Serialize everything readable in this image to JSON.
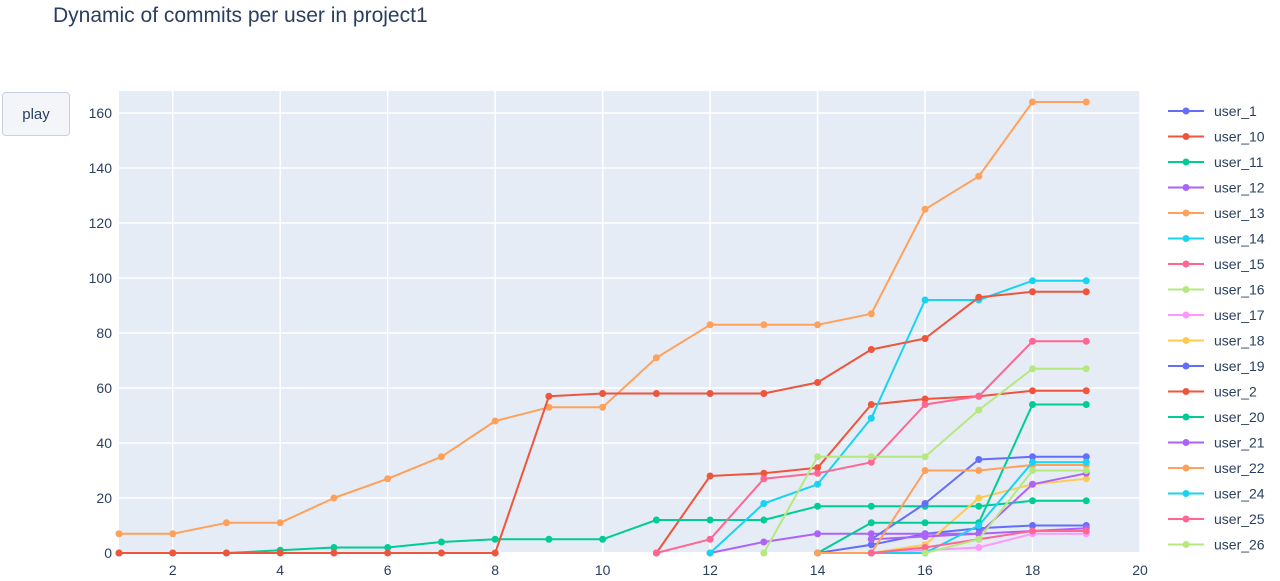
{
  "controls": {
    "play_label": "play"
  },
  "chart_data": {
    "type": "line",
    "title": "Dynamic of commits per user in project1",
    "xlabel": "",
    "ylabel": "",
    "xlim": [
      1,
      20
    ],
    "ylim": [
      0,
      168
    ],
    "x_ticks": [
      2,
      4,
      6,
      8,
      10,
      12,
      14,
      16,
      18,
      20
    ],
    "y_ticks": [
      0,
      20,
      40,
      60,
      80,
      100,
      120,
      140,
      160
    ],
    "grid": true,
    "legend_position": "right",
    "plot_background": "#e5ecf6",
    "series": [
      {
        "name": "user_1",
        "color": "#636efa",
        "x": [
          14,
          15,
          16,
          17,
          18,
          19
        ],
        "y": [
          0,
          3,
          7,
          9,
          10,
          10
        ]
      },
      {
        "name": "user_10",
        "color": "#ef553b",
        "x": [
          11,
          12,
          13,
          14,
          15,
          16,
          17,
          18,
          19
        ],
        "y": [
          0,
          28,
          29,
          31,
          54,
          56,
          57,
          59,
          59
        ]
      },
      {
        "name": "user_11",
        "color": "#00cc96",
        "x": [
          1,
          2,
          3,
          4,
          5,
          6,
          7,
          8,
          9,
          10,
          11,
          12,
          13,
          14,
          15,
          16,
          17,
          18,
          19
        ],
        "y": [
          0,
          0,
          0,
          1,
          2,
          2,
          4,
          5,
          5,
          5,
          12,
          12,
          12,
          17,
          17,
          17,
          17,
          19,
          19
        ]
      },
      {
        "name": "user_12",
        "color": "#ab63fa",
        "x": [
          12,
          13,
          14,
          15,
          16,
          17,
          18,
          19
        ],
        "y": [
          0,
          4,
          7,
          7,
          7,
          7,
          8,
          9
        ]
      },
      {
        "name": "user_13",
        "color": "#ffa15a",
        "x": [
          1,
          2,
          3,
          4,
          5,
          6,
          7,
          8,
          9,
          10,
          11,
          12,
          13,
          14,
          15,
          16,
          17,
          18,
          19
        ],
        "y": [
          7,
          7,
          11,
          11,
          20,
          27,
          35,
          48,
          53,
          53,
          71,
          83,
          83,
          83,
          87,
          125,
          137,
          164,
          164
        ]
      },
      {
        "name": "user_14",
        "color": "#19d3f3",
        "x": [
          12,
          13,
          14,
          15,
          16,
          17,
          18,
          19
        ],
        "y": [
          0,
          18,
          25,
          49,
          92,
          92,
          99,
          99
        ]
      },
      {
        "name": "user_15",
        "color": "#ff6692",
        "x": [
          11,
          12,
          13,
          14,
          15,
          16,
          17,
          18,
          19
        ],
        "y": [
          0,
          5,
          27,
          29,
          33,
          54,
          57,
          77,
          77
        ]
      },
      {
        "name": "user_16",
        "color": "#b6e880",
        "x": [
          13,
          14,
          15,
          16,
          17,
          18,
          19
        ],
        "y": [
          0,
          35,
          35,
          35,
          52,
          67,
          67
        ]
      },
      {
        "name": "user_17",
        "color": "#ff97ff",
        "x": [
          15,
          16,
          17,
          18,
          19
        ],
        "y": [
          0,
          1,
          2,
          7,
          7
        ]
      },
      {
        "name": "user_18",
        "color": "#fecb52",
        "x": [
          15,
          16,
          17,
          18,
          19
        ],
        "y": [
          0,
          3,
          20,
          25,
          27
        ]
      },
      {
        "name": "user_19",
        "color": "#636efa",
        "x": [
          15,
          16,
          17,
          18,
          19
        ],
        "y": [
          5,
          18,
          34,
          35,
          35
        ]
      },
      {
        "name": "user_2",
        "color": "#ef553b",
        "x": [
          1,
          2,
          3,
          4,
          5,
          6,
          7,
          8,
          9,
          10,
          11,
          12,
          13,
          14,
          15,
          16,
          17,
          18,
          19
        ],
        "y": [
          0,
          0,
          0,
          0,
          0,
          0,
          0,
          0,
          57,
          58,
          58,
          58,
          58,
          62,
          74,
          78,
          93,
          95,
          95
        ]
      },
      {
        "name": "user_20",
        "color": "#00cc96",
        "x": [
          14,
          15,
          16,
          17,
          18,
          19
        ],
        "y": [
          0,
          11,
          11,
          11,
          54,
          54
        ]
      },
      {
        "name": "user_21",
        "color": "#ab63fa",
        "x": [
          15,
          16,
          17,
          18,
          19
        ],
        "y": [
          5,
          6,
          7,
          25,
          29
        ]
      },
      {
        "name": "user_22",
        "color": "#ffa15a",
        "x": [
          14,
          15,
          16,
          17,
          18,
          19
        ],
        "y": [
          0,
          0,
          30,
          30,
          32,
          32
        ]
      },
      {
        "name": "user_24",
        "color": "#19d3f3",
        "x": [
          15,
          16,
          17,
          18,
          19
        ],
        "y": [
          0,
          0,
          10,
          33,
          33
        ]
      },
      {
        "name": "user_25",
        "color": "#ff6692",
        "x": [
          15,
          16,
          17,
          18,
          19
        ],
        "y": [
          0,
          2,
          5,
          8,
          8
        ]
      },
      {
        "name": "user_26",
        "color": "#b6e880",
        "x": [
          16,
          17,
          18,
          19
        ],
        "y": [
          0,
          5,
          30,
          30
        ]
      }
    ]
  }
}
